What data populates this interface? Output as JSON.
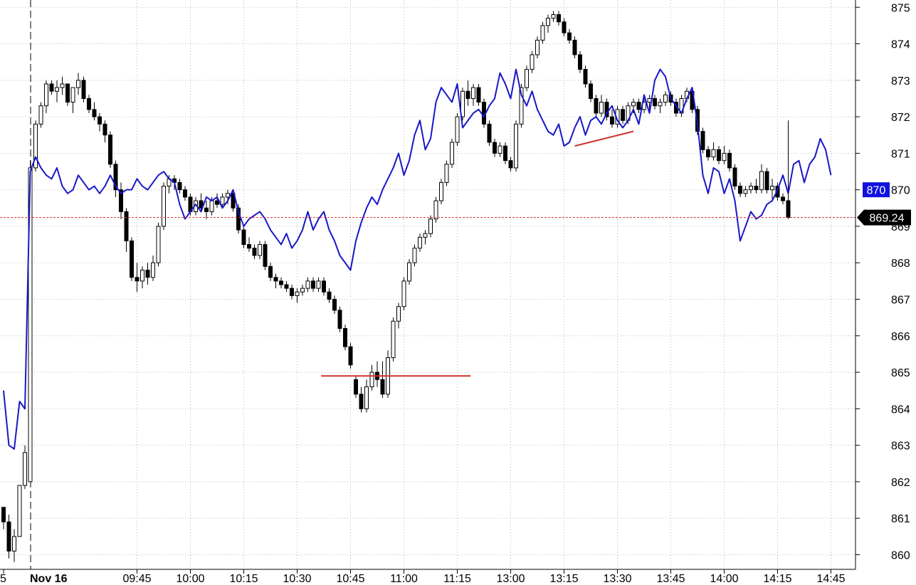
{
  "chart_data": {
    "type": "candlestick",
    "date_label": "Nov 16",
    "grid": true,
    "ylim": [
      859.6,
      875.2
    ],
    "y_ticks": [
      875,
      874,
      873,
      872,
      871,
      870,
      869,
      868,
      867,
      866,
      865,
      864,
      863,
      862,
      861,
      860
    ],
    "y_tick_labels": [
      "875",
      "874",
      "873",
      "872",
      "871",
      "870",
      "869",
      "868",
      "867",
      "866",
      "865",
      "864",
      "863",
      "862",
      "861",
      "860"
    ],
    "x_ticks": [
      {
        "label": "5",
        "slot": 0
      },
      {
        "label": "09:45",
        "slot": 25
      },
      {
        "label": "10:00",
        "slot": 35
      },
      {
        "label": "10:15",
        "slot": 45
      },
      {
        "label": "10:30",
        "slot": 55
      },
      {
        "label": "10:45",
        "slot": 65
      },
      {
        "label": "11:00",
        "slot": 75
      },
      {
        "label": "11:15",
        "slot": 85
      },
      {
        "label": "13:00",
        "slot": 95
      },
      {
        "label": "13:15",
        "slot": 105
      },
      {
        "label": "13:30",
        "slot": 115
      },
      {
        "label": "13:45",
        "slot": 125
      },
      {
        "label": "14:00",
        "slot": 135
      },
      {
        "label": "14:15",
        "slot": 145
      },
      {
        "label": "14:45",
        "slot": 155
      }
    ],
    "session_break_slot": 5,
    "price_line": {
      "value": 869.24,
      "label": "869.24",
      "color": "#d0302b"
    },
    "series_marker": {
      "value": 870,
      "label": "870",
      "color": "#1010e0"
    },
    "candles": [
      [
        861.3,
        861.3,
        860.7,
        860.9
      ],
      [
        860.9,
        861.1,
        859.9,
        860.1
      ],
      [
        860.1,
        860.7,
        859.8,
        860.5
      ],
      [
        860.5,
        861.9,
        860.5,
        861.9
      ],
      [
        861.9,
        863.0,
        861.8,
        862.8
      ],
      [
        862.0,
        870.8,
        862.0,
        870.6
      ],
      [
        870.6,
        871.9,
        870.5,
        871.8
      ],
      [
        871.8,
        872.4,
        871.7,
        872.3
      ],
      [
        872.3,
        873.0,
        872.1,
        872.9
      ],
      [
        872.9,
        873.0,
        872.6,
        872.7
      ],
      [
        872.7,
        873.0,
        872.4,
        872.8
      ],
      [
        872.8,
        873.1,
        872.6,
        872.9
      ],
      [
        872.9,
        872.9,
        872.3,
        872.4
      ],
      [
        872.4,
        872.8,
        872.1,
        872.8
      ],
      [
        872.8,
        873.2,
        872.6,
        873.0
      ],
      [
        873.0,
        873.1,
        872.4,
        872.5
      ],
      [
        872.5,
        872.6,
        872.1,
        872.2
      ],
      [
        872.2,
        872.4,
        871.9,
        872.0
      ],
      [
        872.0,
        872.1,
        871.6,
        871.8
      ],
      [
        871.8,
        871.9,
        871.3,
        871.5
      ],
      [
        871.5,
        871.6,
        870.6,
        870.7
      ],
      [
        870.7,
        870.8,
        869.8,
        870.0
      ],
      [
        870.0,
        870.2,
        869.2,
        869.4
      ],
      [
        869.4,
        869.5,
        868.3,
        868.6
      ],
      [
        868.6,
        868.7,
        867.5,
        867.6
      ],
      [
        867.6,
        868.0,
        867.2,
        867.5
      ],
      [
        867.5,
        867.9,
        867.3,
        867.8
      ],
      [
        867.8,
        868.0,
        867.4,
        867.6
      ],
      [
        867.6,
        868.2,
        867.5,
        868.0
      ],
      [
        868.0,
        869.1,
        867.9,
        869.0
      ],
      [
        869.0,
        870.2,
        868.9,
        870.1
      ],
      [
        870.1,
        870.4,
        869.9,
        870.3
      ],
      [
        870.3,
        870.4,
        870.0,
        870.2
      ],
      [
        870.2,
        870.3,
        869.9,
        870.0
      ],
      [
        870.0,
        870.1,
        869.7,
        869.8
      ],
      [
        869.8,
        869.9,
        869.3,
        869.4
      ],
      [
        869.4,
        869.8,
        869.3,
        869.7
      ],
      [
        869.7,
        869.9,
        869.4,
        869.5
      ],
      [
        869.5,
        869.7,
        869.2,
        869.4
      ],
      [
        869.4,
        869.8,
        869.3,
        869.7
      ],
      [
        869.7,
        869.9,
        869.5,
        869.6
      ],
      [
        869.6,
        869.9,
        869.5,
        869.8
      ],
      [
        869.8,
        870.0,
        869.6,
        869.9
      ],
      [
        869.9,
        870.0,
        869.4,
        869.5
      ],
      [
        869.5,
        869.6,
        868.8,
        868.9
      ],
      [
        868.9,
        869.0,
        868.4,
        868.5
      ],
      [
        868.5,
        868.7,
        868.3,
        868.4
      ],
      [
        868.4,
        868.5,
        868.1,
        868.2
      ],
      [
        868.2,
        868.6,
        868.1,
        868.5
      ],
      [
        868.5,
        868.6,
        867.8,
        867.9
      ],
      [
        867.9,
        868.0,
        867.5,
        867.6
      ],
      [
        867.6,
        867.7,
        867.3,
        867.5
      ],
      [
        867.5,
        867.6,
        867.3,
        867.4
      ],
      [
        867.4,
        867.5,
        867.2,
        867.3
      ],
      [
        867.3,
        867.4,
        867.0,
        867.1
      ],
      [
        867.1,
        867.3,
        866.9,
        867.2
      ],
      [
        867.2,
        867.4,
        867.1,
        867.3
      ],
      [
        867.3,
        867.6,
        867.2,
        867.5
      ],
      [
        867.5,
        867.6,
        867.2,
        867.3
      ],
      [
        867.3,
        867.6,
        867.2,
        867.5
      ],
      [
        867.5,
        867.6,
        867.1,
        867.2
      ],
      [
        867.2,
        867.3,
        866.9,
        867.0
      ],
      [
        867.0,
        867.1,
        866.6,
        866.7
      ],
      [
        866.7,
        866.8,
        866.1,
        866.2
      ],
      [
        866.2,
        866.3,
        865.6,
        865.7
      ],
      [
        865.7,
        865.8,
        865.1,
        865.2
      ],
      [
        864.8,
        864.9,
        864.3,
        864.4
      ],
      [
        864.4,
        864.6,
        863.9,
        864.0
      ],
      [
        864.0,
        864.8,
        863.9,
        864.6
      ],
      [
        864.6,
        865.2,
        864.5,
        865.0
      ],
      [
        865.0,
        865.3,
        864.6,
        864.8
      ],
      [
        864.8,
        865.3,
        864.3,
        864.4
      ],
      [
        864.4,
        865.6,
        864.3,
        865.4
      ],
      [
        865.4,
        866.5,
        865.3,
        866.4
      ],
      [
        866.4,
        866.9,
        866.2,
        866.8
      ],
      [
        866.8,
        867.6,
        866.7,
        867.5
      ],
      [
        867.5,
        868.1,
        867.4,
        868.0
      ],
      [
        868.0,
        868.5,
        867.9,
        868.4
      ],
      [
        868.4,
        868.8,
        868.3,
        868.7
      ],
      [
        868.7,
        868.9,
        868.5,
        868.8
      ],
      [
        868.8,
        869.3,
        868.7,
        869.2
      ],
      [
        869.2,
        869.8,
        869.1,
        869.7
      ],
      [
        869.7,
        870.3,
        869.6,
        870.2
      ],
      [
        870.2,
        870.8,
        870.1,
        870.7
      ],
      [
        870.7,
        871.4,
        870.6,
        871.3
      ],
      [
        871.3,
        872.1,
        871.2,
        872.0
      ],
      [
        872.0,
        872.8,
        871.9,
        872.7
      ],
      [
        872.7,
        873.0,
        872.3,
        872.5
      ],
      [
        872.5,
        872.9,
        872.3,
        872.8
      ],
      [
        872.8,
        872.9,
        872.3,
        872.4
      ],
      [
        872.4,
        872.5,
        871.7,
        871.8
      ],
      [
        871.8,
        871.9,
        871.2,
        871.3
      ],
      [
        871.3,
        871.4,
        870.9,
        871.0
      ],
      [
        871.0,
        871.3,
        870.9,
        871.2
      ],
      [
        871.2,
        871.3,
        870.7,
        870.8
      ],
      [
        870.8,
        870.9,
        870.5,
        870.6
      ],
      [
        870.6,
        871.9,
        870.5,
        871.8
      ],
      [
        871.8,
        872.9,
        871.7,
        872.8
      ],
      [
        872.8,
        873.4,
        872.7,
        873.3
      ],
      [
        873.3,
        873.8,
        873.2,
        873.7
      ],
      [
        873.7,
        874.2,
        873.6,
        874.1
      ],
      [
        874.1,
        874.6,
        874.0,
        874.5
      ],
      [
        874.5,
        874.8,
        874.3,
        874.7
      ],
      [
        874.7,
        874.9,
        874.6,
        874.8
      ],
      [
        874.8,
        874.9,
        874.5,
        874.6
      ],
      [
        874.6,
        874.7,
        874.2,
        874.3
      ],
      [
        874.3,
        874.4,
        874.0,
        874.1
      ],
      [
        874.1,
        874.2,
        873.6,
        873.7
      ],
      [
        873.7,
        873.8,
        873.2,
        873.3
      ],
      [
        873.3,
        873.4,
        872.8,
        872.9
      ],
      [
        872.9,
        873.0,
        872.4,
        872.5
      ],
      [
        872.5,
        872.6,
        872.0,
        872.1
      ],
      [
        872.1,
        872.6,
        872.0,
        872.4
      ],
      [
        872.4,
        872.5,
        871.9,
        872.0
      ],
      [
        872.0,
        872.2,
        871.7,
        871.8
      ],
      [
        871.8,
        872.3,
        871.7,
        872.2
      ],
      [
        872.2,
        872.3,
        871.8,
        871.9
      ],
      [
        871.9,
        872.4,
        871.8,
        872.3
      ],
      [
        872.3,
        872.5,
        872.1,
        872.4
      ],
      [
        872.4,
        872.5,
        872.1,
        872.2
      ],
      [
        872.2,
        872.5,
        872.1,
        872.4
      ],
      [
        872.4,
        872.6,
        872.2,
        872.5
      ],
      [
        872.5,
        872.6,
        872.2,
        872.3
      ],
      [
        872.3,
        872.5,
        872.1,
        872.4
      ],
      [
        872.4,
        872.7,
        872.3,
        872.6
      ],
      [
        872.6,
        872.7,
        872.3,
        872.4
      ],
      [
        872.4,
        872.5,
        872.0,
        872.1
      ],
      [
        872.1,
        872.6,
        872.0,
        872.5
      ],
      [
        872.5,
        872.8,
        872.4,
        872.7
      ],
      [
        872.7,
        872.8,
        872.1,
        872.2
      ],
      [
        872.2,
        872.3,
        871.5,
        871.6
      ],
      [
        871.6,
        871.7,
        871.0,
        871.1
      ],
      [
        871.1,
        871.2,
        870.8,
        870.9
      ],
      [
        870.9,
        871.3,
        870.8,
        871.1
      ],
      [
        871.1,
        871.2,
        870.7,
        870.8
      ],
      [
        870.8,
        871.2,
        870.7,
        871.0
      ],
      [
        871.0,
        871.1,
        870.5,
        870.6
      ],
      [
        870.6,
        870.7,
        870.0,
        870.1
      ],
      [
        870.1,
        870.2,
        869.8,
        869.9
      ],
      [
        869.9,
        870.1,
        869.8,
        870.0
      ],
      [
        870.0,
        870.2,
        869.9,
        870.1
      ],
      [
        870.1,
        870.3,
        869.9,
        870.0
      ],
      [
        870.0,
        870.7,
        869.9,
        870.5
      ],
      [
        870.5,
        870.6,
        869.9,
        870.0
      ],
      [
        870.0,
        870.3,
        869.7,
        870.1
      ],
      [
        870.1,
        870.2,
        869.7,
        869.8
      ],
      [
        869.8,
        869.9,
        869.6,
        869.7
      ],
      [
        869.7,
        871.9,
        869.2,
        869.24
      ]
    ],
    "series": [
      {
        "values": [
          864.5,
          863.0,
          862.9,
          864.2,
          864.0,
          870.5,
          870.9,
          870.6,
          870.4,
          870.3,
          870.6,
          870.1,
          869.9,
          870.0,
          870.4,
          870.2,
          870.0,
          870.1,
          869.9,
          870.1,
          870.4,
          870.1,
          869.9,
          870.0,
          870.0,
          870.3,
          870.1,
          870.0,
          870.2,
          870.4,
          870.5,
          870.3,
          870.2,
          869.6,
          869.2,
          869.4,
          869.6,
          869.4,
          869.8,
          869.7,
          869.8,
          869.5,
          869.7,
          870.0,
          869.4,
          869.0,
          869.2,
          869.3,
          869.4,
          869.2,
          868.9,
          868.7,
          868.5,
          868.8,
          868.4,
          868.6,
          868.9,
          869.4,
          868.9,
          869.2,
          869.4,
          868.9,
          868.6,
          868.2,
          868.0,
          867.8,
          868.6,
          869.1,
          869.5,
          869.8,
          869.6,
          870.0,
          870.3,
          870.6,
          871.0,
          870.4,
          870.8,
          871.5,
          871.9,
          871.1,
          871.4,
          872.4,
          872.8,
          872.6,
          872.4,
          872.9,
          871.7,
          871.9,
          872.1,
          872.2,
          872.0,
          872.3,
          872.5,
          873.2,
          872.9,
          872.5,
          873.3,
          872.6,
          872.3,
          872.7,
          872.2,
          871.9,
          871.6,
          871.5,
          871.8,
          871.2,
          871.3,
          871.7,
          872.0,
          871.5,
          871.9,
          872.0,
          871.8,
          872.1,
          872.3,
          871.9,
          871.7,
          871.9,
          872.2,
          871.8,
          872.6,
          872.1,
          873.0,
          873.3,
          873.1,
          872.5,
          872.3,
          872.1,
          872.5,
          872.8,
          871.8,
          870.4,
          869.9,
          870.6,
          870.5,
          869.9,
          870.3,
          869.7,
          868.6,
          869.0,
          869.4,
          869.2,
          869.3,
          869.6,
          869.7,
          870.0,
          870.4,
          869.9,
          870.7,
          870.8,
          870.2,
          870.7,
          870.9,
          871.4,
          871.1,
          870.4
        ]
      }
    ],
    "annotations": [
      {
        "type": "horizontal",
        "from_slot": 59.5,
        "to_slot": 87.5,
        "value": 864.9
      },
      {
        "type": "trendline",
        "from_slot": 107,
        "from_value": 871.2,
        "to_slot": 118,
        "to_value": 871.6
      }
    ]
  }
}
